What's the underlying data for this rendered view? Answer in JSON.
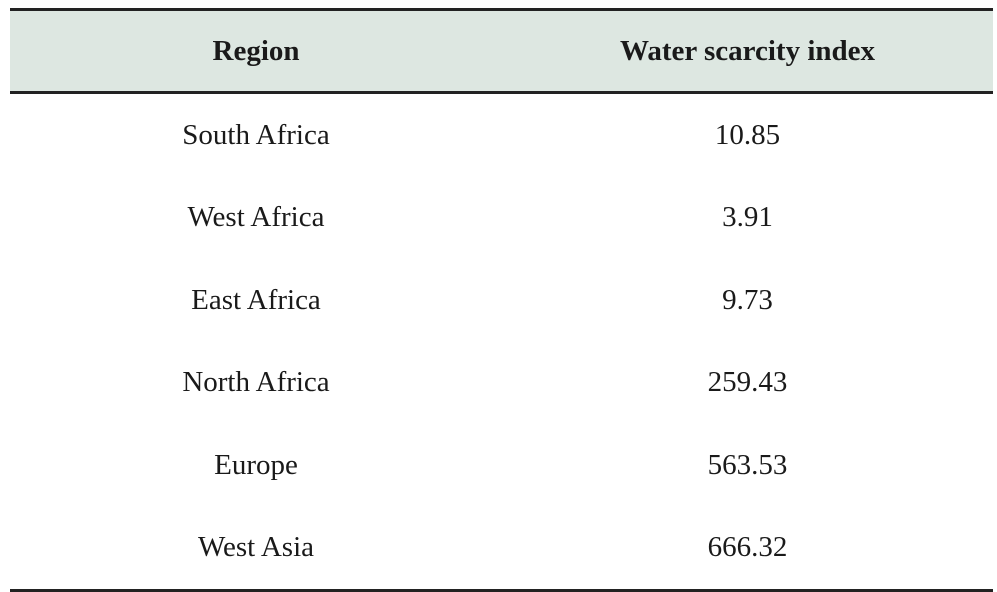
{
  "table": {
    "headers": [
      "Region",
      "Water scarcity index"
    ],
    "rows": [
      [
        "South Africa",
        10.85
      ],
      [
        "West Africa",
        3.91
      ],
      [
        "East Africa",
        9.73
      ],
      [
        "North Africa",
        259.43
      ],
      [
        "Europe",
        563.53
      ],
      [
        "West Asia",
        666.32
      ]
    ]
  }
}
